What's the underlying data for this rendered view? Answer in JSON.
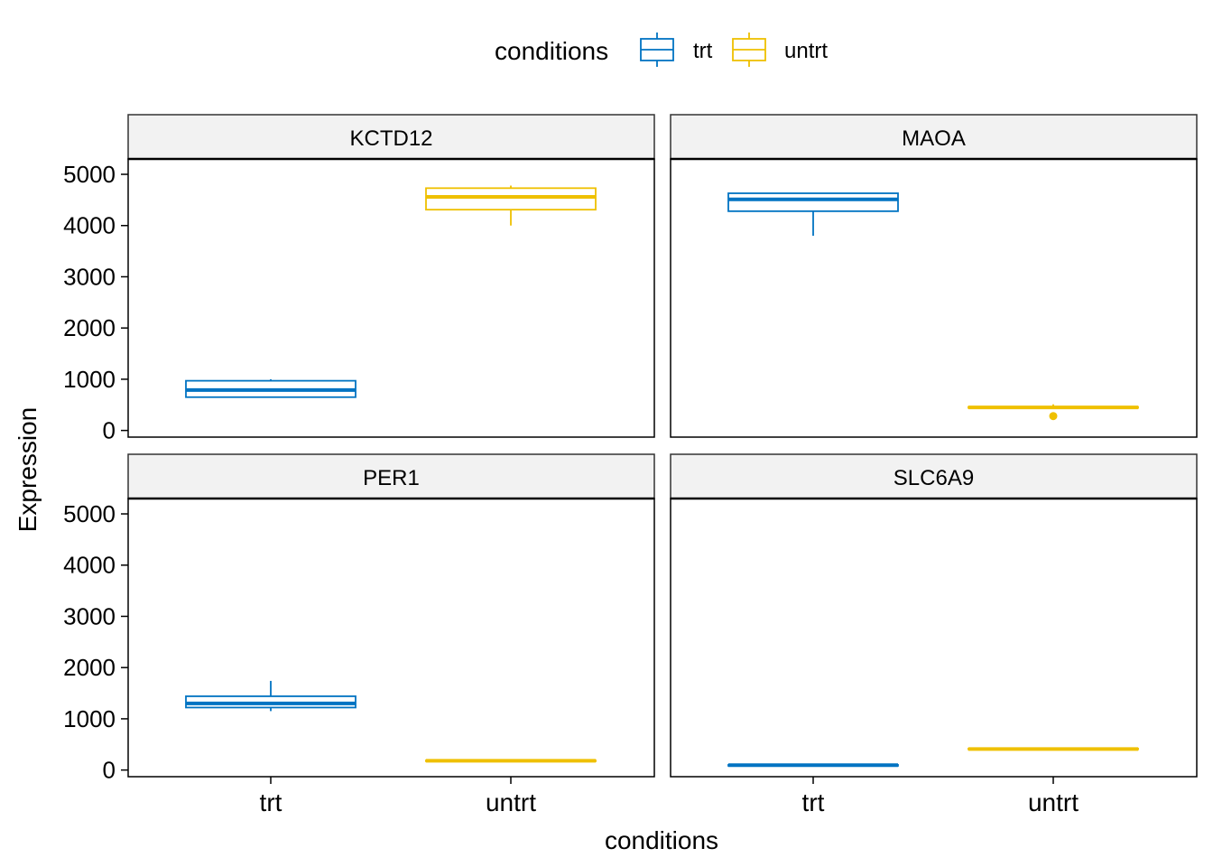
{
  "chart_data": {
    "type": "boxplot",
    "facet_wrap": {
      "ncol": 2,
      "nrow": 2
    },
    "xlabel": "conditions",
    "ylabel": "Expression",
    "categories": [
      "trt",
      "untrt"
    ],
    "yticks": [
      0,
      1000,
      2000,
      3000,
      4000,
      5000
    ],
    "ylim": [
      -130,
      5300
    ],
    "grid": false,
    "legend": {
      "title": "conditions",
      "position": "top",
      "entries": [
        {
          "name": "trt",
          "color": "#0073C2"
        },
        {
          "name": "untrt",
          "color": "#EFC000"
        }
      ]
    },
    "panels": [
      {
        "title": "KCTD12",
        "boxes": [
          {
            "category": "trt",
            "min": 650,
            "q1": 650,
            "median": 790,
            "q3": 970,
            "max": 1000,
            "outliers": []
          },
          {
            "category": "untrt",
            "min": 4000,
            "q1": 4310,
            "median": 4560,
            "q3": 4730,
            "max": 4780,
            "outliers": []
          }
        ]
      },
      {
        "title": "MAOA",
        "boxes": [
          {
            "category": "trt",
            "min": 3800,
            "q1": 4280,
            "median": 4510,
            "q3": 4630,
            "max": 4630,
            "outliers": []
          },
          {
            "category": "untrt",
            "min": 430,
            "q1": 440,
            "median": 450,
            "q3": 460,
            "max": 510,
            "outliers": [
              280
            ]
          }
        ]
      },
      {
        "title": "PER1",
        "boxes": [
          {
            "category": "trt",
            "min": 1150,
            "q1": 1220,
            "median": 1300,
            "q3": 1440,
            "max": 1740,
            "outliers": []
          },
          {
            "category": "untrt",
            "min": 160,
            "q1": 170,
            "median": 180,
            "q3": 190,
            "max": 200,
            "outliers": []
          }
        ]
      },
      {
        "title": "SLC6A9",
        "boxes": [
          {
            "category": "trt",
            "min": 85,
            "q1": 90,
            "median": 95,
            "q3": 100,
            "max": 105,
            "outliers": []
          },
          {
            "category": "untrt",
            "min": 400,
            "q1": 405,
            "median": 410,
            "q3": 420,
            "max": 440,
            "outliers": []
          }
        ]
      }
    ]
  }
}
